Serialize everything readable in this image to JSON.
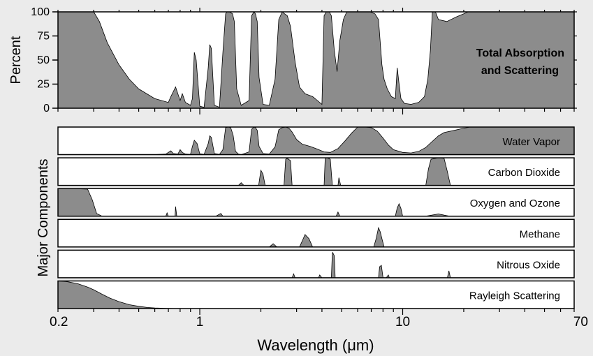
{
  "chart_data": {
    "type": "area",
    "x_scale": "log",
    "xlim": [
      0.2,
      70
    ],
    "xlabel": "Wavelength (μm)",
    "x_ticks": [
      "0.2",
      "1",
      "10",
      "70"
    ],
    "x_tick_values": [
      0.2,
      1,
      10,
      70
    ],
    "total": {
      "title_lines": [
        "Total Absorption",
        "and Scattering"
      ],
      "ylabel": "Percent",
      "ylim": [
        0,
        100
      ],
      "y_ticks": [
        "0",
        "25",
        "50",
        "75",
        "100"
      ],
      "y_tick_values": [
        0,
        25,
        50,
        75,
        100
      ],
      "fill_color": "#8c8c8c",
      "x": [
        0.2,
        0.3,
        0.32,
        0.35,
        0.4,
        0.45,
        0.5,
        0.6,
        0.7,
        0.72,
        0.76,
        0.8,
        0.82,
        0.85,
        0.9,
        0.92,
        0.94,
        0.96,
        1.0,
        1.05,
        1.1,
        1.12,
        1.14,
        1.18,
        1.25,
        1.3,
        1.34,
        1.36,
        1.4,
        1.45,
        1.48,
        1.52,
        1.6,
        1.75,
        1.8,
        1.85,
        1.88,
        1.92,
        1.96,
        2.05,
        2.2,
        2.35,
        2.45,
        2.55,
        2.62,
        2.7,
        2.8,
        2.95,
        3.1,
        3.3,
        3.6,
        3.8,
        4.0,
        4.1,
        4.2,
        4.25,
        4.35,
        4.45,
        4.6,
        4.75,
        4.9,
        5.1,
        5.3,
        5.6,
        6.0,
        6.4,
        6.9,
        7.3,
        7.6,
        7.9,
        8.1,
        8.4,
        8.8,
        9.2,
        9.4,
        9.6,
        9.8,
        10.2,
        11.0,
        12.0,
        12.8,
        13.3,
        13.7,
        14.0,
        14.5,
        15.0,
        16.5,
        18.5,
        20.0,
        21.0,
        23.0,
        70.0
      ],
      "y": [
        100,
        100,
        90,
        68,
        45,
        30,
        20,
        10,
        6,
        12,
        22,
        8,
        15,
        6,
        3,
        10,
        58,
        50,
        2,
        1,
        42,
        66,
        62,
        3,
        1,
        58,
        98,
        100,
        100,
        98,
        90,
        20,
        3,
        8,
        96,
        100,
        98,
        90,
        32,
        4,
        3,
        30,
        92,
        100,
        98,
        96,
        85,
        48,
        22,
        15,
        12,
        8,
        4,
        96,
        100,
        100,
        100,
        96,
        60,
        38,
        70,
        92,
        100,
        100,
        100,
        100,
        100,
        98,
        92,
        45,
        30,
        20,
        12,
        10,
        42,
        25,
        10,
        5,
        4,
        6,
        12,
        30,
        60,
        100,
        100,
        92,
        90,
        95,
        98,
        100,
        100,
        100
      ]
    },
    "components_ylabel": "Major Components",
    "series": [
      {
        "name": "Water Vapor",
        "fill_color": "#8c8c8c",
        "x": [
          0.2,
          0.6,
          0.68,
          0.72,
          0.74,
          0.78,
          0.8,
          0.82,
          0.85,
          0.9,
          0.92,
          0.94,
          0.97,
          1.0,
          1.05,
          1.1,
          1.12,
          1.14,
          1.18,
          1.25,
          1.3,
          1.34,
          1.38,
          1.42,
          1.46,
          1.5,
          1.55,
          1.6,
          1.75,
          1.8,
          1.85,
          1.88,
          1.92,
          1.96,
          2.05,
          2.2,
          2.35,
          2.45,
          2.55,
          2.65,
          2.75,
          2.85,
          3.0,
          3.2,
          3.5,
          3.8,
          4.1,
          4.4,
          4.8,
          5.2,
          5.6,
          6.0,
          6.5,
          7.0,
          7.5,
          8.0,
          8.5,
          9.0,
          10.0,
          11.0,
          12.0,
          13.0,
          14.0,
          15.0,
          16.0,
          18.0,
          20.0,
          21.5,
          23.0,
          70.0
        ],
        "y": [
          0,
          0,
          2,
          14,
          4,
          2,
          18,
          8,
          2,
          1,
          30,
          52,
          40,
          3,
          1,
          40,
          68,
          62,
          4,
          1,
          18,
          98,
          100,
          98,
          70,
          12,
          2,
          0,
          10,
          92,
          100,
          98,
          88,
          30,
          4,
          2,
          28,
          90,
          98,
          100,
          96,
          82,
          55,
          38,
          30,
          20,
          10,
          8,
          22,
          50,
          78,
          100,
          100,
          98,
          85,
          60,
          35,
          18,
          8,
          6,
          12,
          26,
          48,
          68,
          80,
          88,
          96,
          100,
          100,
          100
        ]
      },
      {
        "name": "Carbon Dioxide",
        "fill_color": "#8c8c8c",
        "x": [
          0.2,
          1.55,
          1.6,
          1.65,
          1.95,
          2.0,
          2.05,
          2.1,
          2.6,
          2.65,
          2.7,
          2.8,
          2.85,
          4.1,
          4.15,
          4.25,
          4.4,
          4.5,
          4.8,
          4.85,
          4.95,
          13.0,
          13.4,
          13.8,
          15.0,
          16.0,
          16.6,
          17.2,
          70.0
        ],
        "y": [
          0,
          0,
          10,
          0,
          0,
          55,
          40,
          0,
          0,
          95,
          98,
          90,
          0,
          0,
          100,
          100,
          95,
          0,
          0,
          28,
          0,
          0,
          60,
          95,
          100,
          98,
          50,
          0,
          0
        ]
      },
      {
        "name": "Oxygen and Ozone",
        "fill_color": "#8c8c8c",
        "x": [
          0.2,
          0.24,
          0.28,
          0.295,
          0.31,
          0.33,
          0.6,
          0.68,
          0.69,
          0.7,
          0.755,
          0.76,
          0.77,
          1.2,
          1.27,
          1.3,
          4.7,
          4.8,
          4.9,
          9.2,
          9.4,
          9.6,
          9.8,
          10.0,
          13.0,
          15.0,
          17.0,
          70.0
        ],
        "y": [
          100,
          100,
          98,
          60,
          10,
          0,
          0,
          0,
          12,
          0,
          0,
          35,
          0,
          0,
          10,
          0,
          0,
          15,
          0,
          0,
          30,
          45,
          28,
          0,
          0,
          8,
          0,
          0
        ]
      },
      {
        "name": "Methane",
        "fill_color": "#8c8c8c",
        "x": [
          0.2,
          2.2,
          2.3,
          2.4,
          3.1,
          3.2,
          3.3,
          3.45,
          3.6,
          7.2,
          7.4,
          7.6,
          7.75,
          7.9,
          8.1,
          70.0
        ],
        "y": [
          0,
          0,
          12,
          0,
          0,
          22,
          45,
          30,
          0,
          0,
          30,
          70,
          55,
          30,
          0,
          0
        ]
      },
      {
        "name": "Nitrous Oxide",
        "fill_color": "#8c8c8c",
        "x": [
          0.2,
          2.85,
          2.9,
          2.95,
          3.85,
          3.9,
          4.0,
          4.45,
          4.5,
          4.52,
          4.6,
          4.65,
          7.6,
          7.7,
          7.85,
          8.0,
          8.3,
          8.5,
          8.6,
          16.6,
          16.9,
          17.2,
          70.0
        ],
        "y": [
          0,
          0,
          14,
          0,
          0,
          10,
          0,
          0,
          90,
          92,
          80,
          0,
          0,
          40,
          45,
          0,
          0,
          10,
          0,
          0,
          25,
          0,
          0
        ]
      },
      {
        "name": "Rayleigh Scattering",
        "fill_color": "#8c8c8c",
        "x": [
          0.2,
          0.22,
          0.25,
          0.28,
          0.3,
          0.33,
          0.36,
          0.4,
          0.45,
          0.5,
          0.55,
          0.6,
          0.7,
          0.8,
          70.0
        ],
        "y": [
          100,
          98,
          90,
          78,
          68,
          52,
          38,
          25,
          14,
          8,
          4,
          2,
          0.5,
          0,
          0
        ]
      }
    ]
  }
}
